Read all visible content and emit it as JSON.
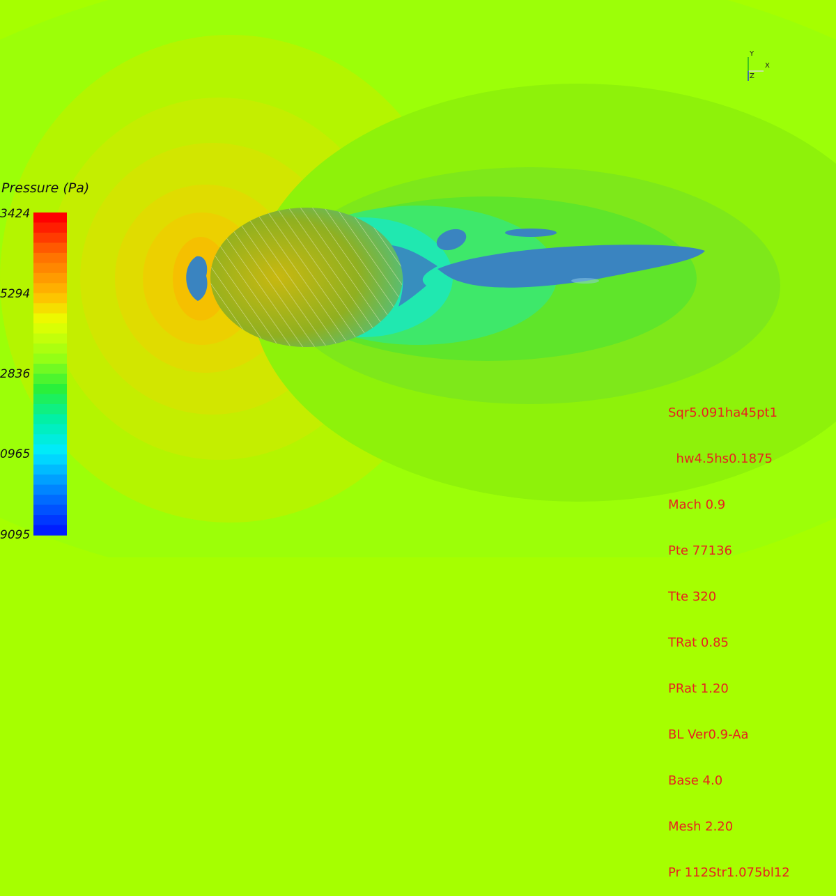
{
  "legend": {
    "title": "Pressure (Pa)",
    "ticks": [
      "3424",
      "5294",
      "2836",
      "0965",
      "9095"
    ]
  },
  "parameters": [
    "Sqr5.091ha45pt1",
    "  hw4.5hs0.1875",
    "Mach 0.9",
    "Pte 77136",
    "Tte 320",
    "TRat 0.85",
    "PRat 1.20",
    "BL Ver0.9-Aa",
    "Base 4.0",
    "Mesh 2.20",
    "Pr 112Str1.075bl12"
  ],
  "axes": {
    "x": "X",
    "y": "Y",
    "z": "Z"
  },
  "colors": {
    "background": "#a6ff00",
    "param_text": "#e8211f",
    "isosurface": "#3a84c0"
  }
}
